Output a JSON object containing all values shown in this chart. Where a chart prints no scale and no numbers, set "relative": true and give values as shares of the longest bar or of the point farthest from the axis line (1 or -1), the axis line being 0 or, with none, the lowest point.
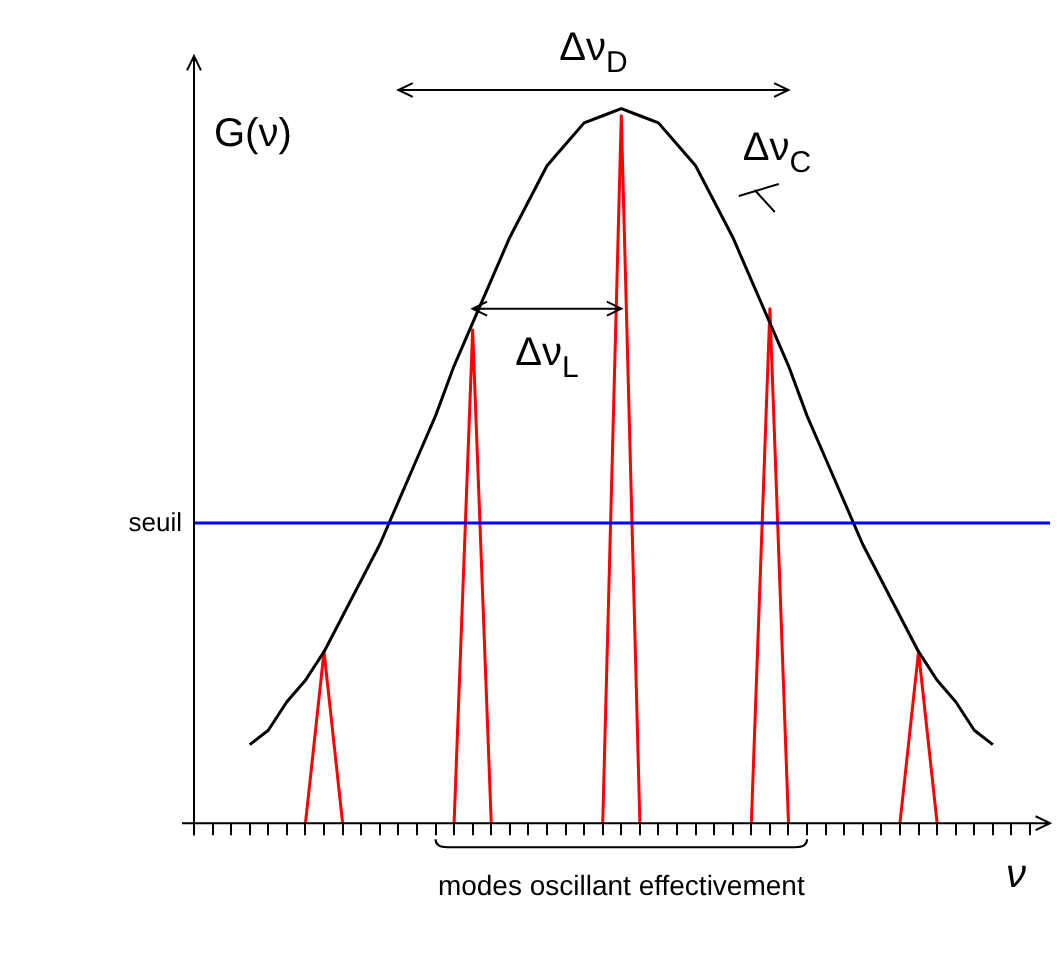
{
  "chart_data": {
    "type": "line",
    "relative": true,
    "xlabel": "ν",
    "ylabel": "G(ν)",
    "categories": [
      null,
      null,
      null,
      null,
      null,
      null,
      null,
      null,
      null,
      null,
      null,
      null,
      null,
      null,
      null,
      null,
      null,
      null,
      null,
      null,
      null,
      null,
      null,
      null,
      null,
      null,
      null,
      null,
      null,
      null,
      null,
      null,
      null,
      null,
      null,
      null,
      null,
      null,
      null,
      null,
      null,
      null,
      null,
      null,
      null,
      null
    ],
    "series": [
      {
        "color": "#000000",
        "values": [
          null,
          null,
          null,
          0.11,
          0.13,
          0.17,
          0.2,
          0.24,
          0.29,
          0.34,
          0.39,
          0.45,
          0.51,
          0.57,
          0.64,
          0.7,
          0.76,
          0.82,
          0.87,
          0.92,
          0.95,
          0.98,
          0.99,
          1,
          0.99,
          0.98,
          0.95,
          0.92,
          0.87,
          0.82,
          0.76,
          0.7,
          0.64,
          0.57,
          0.51,
          0.45,
          0.39,
          0.34,
          0.29,
          0.24,
          0.2,
          0.17,
          0.13,
          0.11,
          null,
          null
        ]
      },
      {
        "color": "#ff0000",
        "values": [
          null,
          null,
          null,
          null,
          null,
          null,
          0,
          0.24,
          0,
          null,
          null,
          null,
          null,
          null,
          0,
          0.69,
          0,
          null,
          null,
          null,
          null,
          null,
          0,
          0.99,
          0,
          null,
          null,
          null,
          null,
          null,
          0,
          0.72,
          0,
          null,
          null,
          null,
          null,
          null,
          0,
          0.24,
          0,
          null,
          null,
          null,
          null,
          null
        ]
      }
    ],
    "ref_lines": [
      {
        "axis": "y",
        "value": 0.42,
        "label": "seuil",
        "color": "#0000ff"
      }
    ],
    "annotations": [
      "Δν$_{D}$",
      "Δν$_{C}$",
      "Δν$_{L}$",
      "modes oscillant effectivement"
    ],
    "legend": false,
    "grid": false,
    "marker": "none",
    "line_style": "solid"
  }
}
